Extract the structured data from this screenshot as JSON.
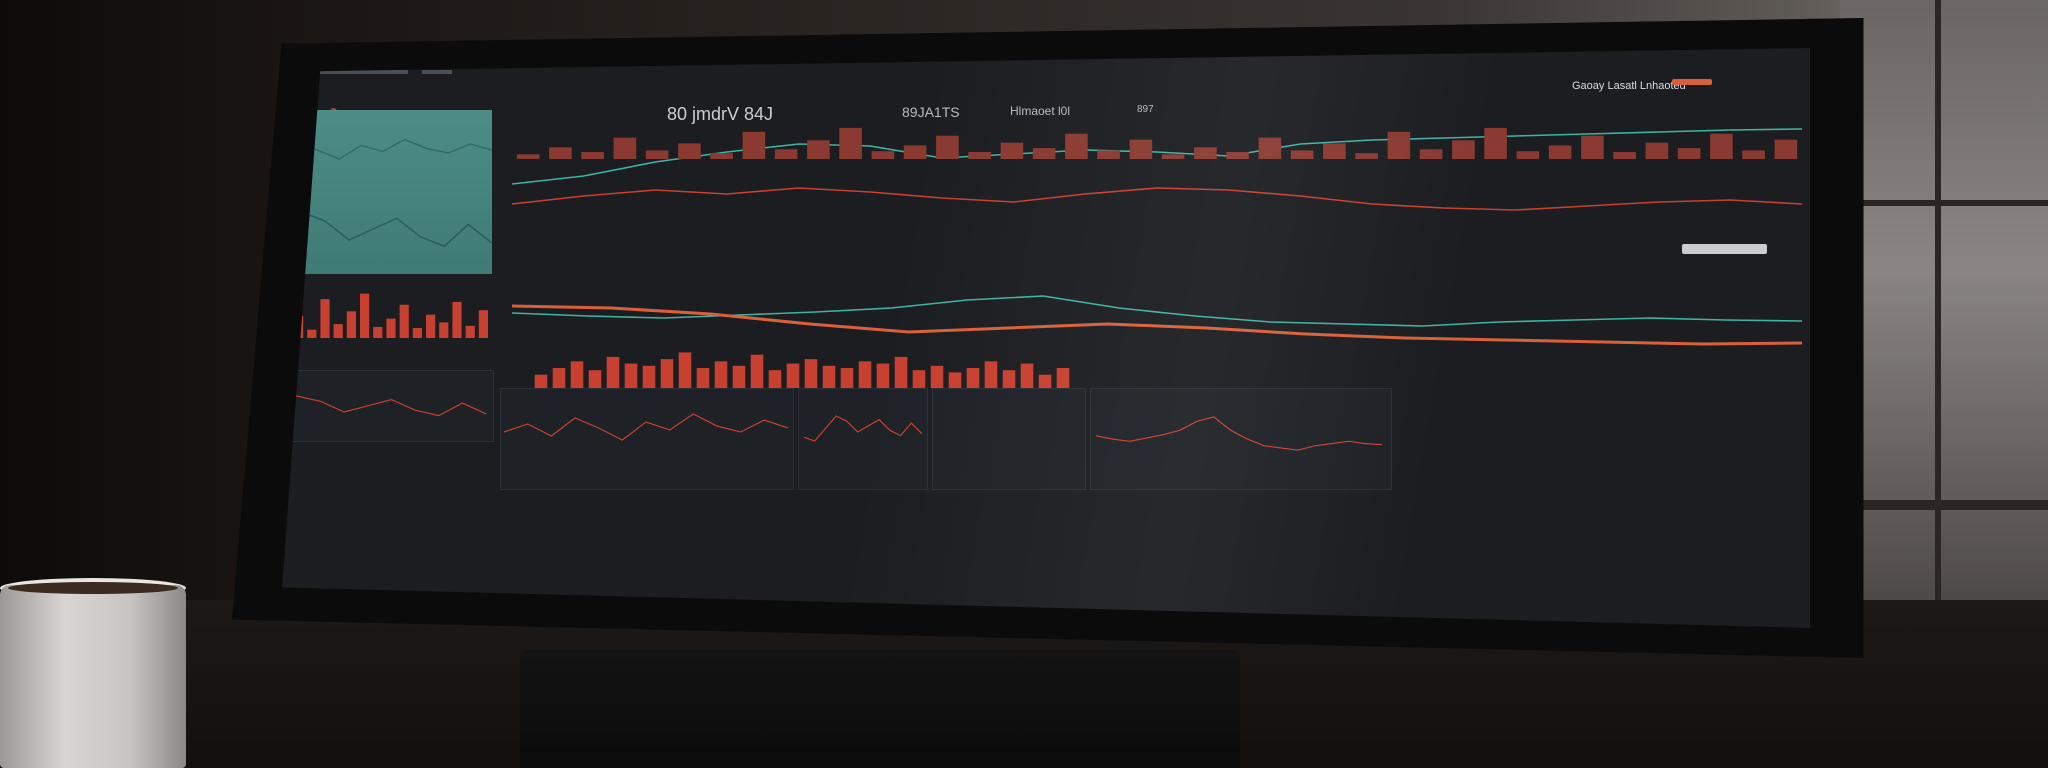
{
  "header": {
    "big_value_1": "80 jmdrV 84J",
    "big_value_2": "89JA1TS",
    "big_value_3": "Hlmaoet l0l",
    "big_value_4": "897",
    "brand": "Gaoay Lasatl Lnhaoted"
  },
  "colors": {
    "teal": "#3fb3a2",
    "red": "#c8402f",
    "orange": "#d9603b",
    "panel_teal": "#4c8d85"
  },
  "chart_data": [
    {
      "type": "line",
      "series": [
        {
          "values": [
            48,
            52,
            46,
            55,
            50,
            44,
            53,
            49,
            57,
            51,
            48,
            54,
            50
          ]
        }
      ]
    },
    {
      "type": "line",
      "series": [
        {
          "values": [
            42,
            38,
            52,
            66,
            60,
            48,
            55,
            62,
            50,
            44,
            58,
            46
          ]
        }
      ]
    },
    {
      "type": "bar",
      "values": [
        12,
        30,
        18,
        55,
        22,
        40,
        15,
        70,
        25,
        48,
        80,
        20,
        35,
        60,
        18,
        42,
        28,
        65,
        22,
        50
      ]
    },
    {
      "type": "line",
      "series": [
        {
          "values": [
            40,
            48,
            62,
            72,
            80,
            78,
            66,
            70,
            74,
            72,
            68,
            80,
            84,
            86,
            88,
            90,
            92,
            94,
            95
          ]
        },
        {
          "values": [
            20,
            28,
            34,
            30,
            36,
            32,
            26,
            22,
            30,
            36,
            34,
            28,
            20,
            16,
            14,
            18,
            22,
            24,
            20
          ]
        }
      ]
    },
    {
      "type": "line",
      "series": [
        {
          "values": [
            55,
            52,
            50,
            53,
            56,
            60,
            68,
            72,
            60,
            52,
            46,
            44,
            42,
            46,
            48,
            50,
            48,
            47
          ]
        },
        {
          "values": [
            62,
            60,
            54,
            44,
            36,
            40,
            44,
            40,
            34,
            30,
            28,
            26,
            24,
            25
          ]
        }
      ]
    },
    {
      "type": "bar",
      "values": [
        30,
        45,
        60,
        40,
        70,
        55,
        50,
        65,
        80,
        45,
        60,
        50,
        75,
        40,
        55,
        65,
        50,
        45,
        60,
        55,
        70,
        40,
        50,
        35,
        45,
        60,
        40,
        55,
        30,
        45
      ]
    }
  ]
}
